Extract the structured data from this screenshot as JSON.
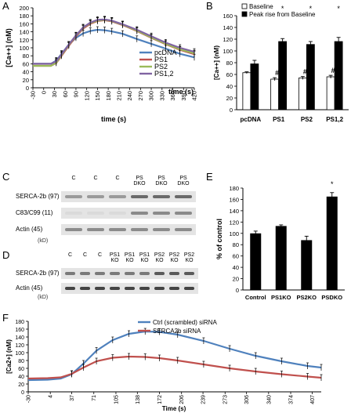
{
  "panel_letters": {
    "A": "A",
    "B": "B",
    "C": "C",
    "D": "D",
    "E": "E",
    "F": "F"
  },
  "chart_data": [
    {
      "panel": "A",
      "type": "line",
      "ylabel": "[Ca++] (nM)",
      "xlabel": "time (s)",
      "xaxis_end_label": "time (s)",
      "ylim": [
        0,
        200
      ],
      "yticks": [
        0,
        20,
        40,
        60,
        80,
        100,
        120,
        140,
        160,
        180,
        200
      ],
      "xlim": [
        -30,
        420
      ],
      "xticks": [
        -30,
        0,
        30,
        60,
        90,
        120,
        150,
        180,
        210,
        240,
        270,
        300,
        330,
        360,
        390,
        420
      ],
      "legend": [
        "pcDNA",
        "PS1",
        "PS2",
        "PS1,2"
      ],
      "colors": [
        "#4f81bd",
        "#c0504d",
        "#9bbb59",
        "#8064a2"
      ],
      "series": [
        {
          "name": "pcDNA",
          "x": [
            -30,
            0,
            20,
            35,
            50,
            70,
            90,
            110,
            130,
            150,
            170,
            190,
            220,
            260,
            300,
            340,
            380,
            420
          ],
          "y": [
            60,
            60,
            60,
            68,
            85,
            108,
            125,
            136,
            142,
            145,
            144,
            141,
            135,
            122,
            110,
            98,
            85,
            76
          ]
        },
        {
          "name": "PS1",
          "x": [
            -30,
            0,
            20,
            35,
            50,
            70,
            90,
            110,
            130,
            150,
            170,
            190,
            220,
            260,
            300,
            340,
            380,
            420
          ],
          "y": [
            55,
            55,
            55,
            62,
            80,
            105,
            128,
            148,
            160,
            167,
            169,
            166,
            157,
            142,
            125,
            109,
            95,
            84
          ]
        },
        {
          "name": "PS2",
          "x": [
            -30,
            0,
            20,
            35,
            50,
            70,
            90,
            110,
            130,
            150,
            170,
            190,
            220,
            260,
            300,
            340,
            380,
            420
          ],
          "y": [
            55,
            55,
            55,
            63,
            82,
            107,
            130,
            150,
            162,
            168,
            170,
            167,
            158,
            143,
            126,
            110,
            96,
            86
          ]
        },
        {
          "name": "PS1,2",
          "x": [
            -30,
            0,
            20,
            35,
            50,
            70,
            90,
            110,
            130,
            150,
            170,
            190,
            220,
            260,
            300,
            340,
            380,
            420
          ],
          "y": [
            60,
            60,
            60,
            66,
            84,
            108,
            131,
            151,
            163,
            170,
            171,
            168,
            159,
            145,
            129,
            113,
            100,
            90
          ]
        }
      ]
    },
    {
      "panel": "B",
      "type": "bar",
      "ylabel": "[Ca++] (nM)",
      "ylim": [
        0,
        160
      ],
      "yticks": [
        0,
        20,
        40,
        60,
        80,
        100,
        120,
        140,
        160
      ],
      "categories": [
        "pcDNA",
        "PS1",
        "PS2",
        "PS1,2"
      ],
      "series": [
        {
          "name": "Baseline",
          "values": [
            63,
            52,
            54,
            56
          ],
          "errors": [
            1.5,
            2.5,
            2.5,
            2.5
          ],
          "color": "#ffffff"
        },
        {
          "name": "Peak rise from Baseline",
          "values": [
            78,
            116,
            111,
            116
          ],
          "errors": [
            6,
            5,
            5,
            7
          ],
          "color": "#000000"
        }
      ],
      "baseline_marks": [
        "",
        "#",
        "#",
        "#"
      ],
      "peak_marks": [
        "",
        "*",
        "*",
        "*"
      ]
    },
    {
      "panel": "E",
      "type": "bar",
      "ylabel": "% of control",
      "ylim": [
        0,
        180
      ],
      "yticks": [
        0,
        20,
        40,
        60,
        80,
        100,
        120,
        140,
        160,
        180
      ],
      "categories": [
        "Control",
        "PS1KO",
        "PS2KO",
        "PSDKO"
      ],
      "values": [
        100,
        113,
        88,
        165
      ],
      "errors": [
        4,
        2,
        7,
        7
      ],
      "marks": [
        "",
        "",
        "",
        "*"
      ]
    },
    {
      "panel": "F",
      "type": "line",
      "ylabel": "[Ca2+] (nM)",
      "xlabel": "Time (s)",
      "ylim": [
        0,
        180
      ],
      "yticks": [
        0,
        20,
        40,
        60,
        80,
        100,
        120,
        140,
        160,
        180
      ],
      "xlim": [
        -30,
        421
      ],
      "xticks": [
        -30,
        4,
        37,
        71,
        105,
        138,
        172,
        206,
        239,
        273,
        306,
        340,
        374,
        407
      ],
      "legend": [
        "Ctrl (scrambled) siRNA",
        "SERCA2b siRNA"
      ],
      "colors": [
        "#4f81bd",
        "#c0504d"
      ],
      "series": [
        {
          "name": "Ctrl (scrambled) siRNA",
          "x": [
            -30,
            0,
            20,
            37,
            55,
            75,
            100,
            125,
            150,
            172,
            200,
            240,
            280,
            320,
            360,
            400,
            421
          ],
          "y": [
            30,
            31,
            34,
            45,
            72,
            105,
            132,
            148,
            154,
            153,
            146,
            130,
            110,
            92,
            78,
            66,
            62
          ]
        },
        {
          "name": "SERCA2b siRNA",
          "x": [
            -30,
            0,
            20,
            37,
            55,
            75,
            100,
            125,
            150,
            172,
            200,
            240,
            280,
            320,
            360,
            400,
            421
          ],
          "y": [
            34,
            35,
            37,
            46,
            62,
            78,
            87,
            90,
            89,
            86,
            80,
            70,
            60,
            52,
            45,
            39,
            36
          ]
        }
      ]
    }
  ],
  "blot_c": {
    "lane_labels": [
      [
        "C"
      ],
      [
        "C"
      ],
      [
        "C"
      ],
      [
        "PS",
        "DKO"
      ],
      [
        "PS",
        "DKO"
      ],
      [
        "PS",
        "DKO"
      ]
    ],
    "row_labels": [
      "SERCA-2b (97)",
      "C83/C99 (11)",
      "Actin (45)"
    ],
    "unit": "(kD)"
  },
  "blot_d": {
    "lane_labels": [
      [
        "C"
      ],
      [
        "C"
      ],
      [
        "C"
      ],
      [
        "PS1",
        "KO"
      ],
      [
        "PS1",
        "KO"
      ],
      [
        "PS1",
        "KO"
      ],
      [
        "PS2",
        "KO"
      ],
      [
        "PS2",
        "KO"
      ],
      [
        "PS2",
        "KO"
      ]
    ],
    "row_labels": [
      "SERCA-2b (97)",
      "Actin (45)"
    ],
    "unit": "(kD)"
  }
}
